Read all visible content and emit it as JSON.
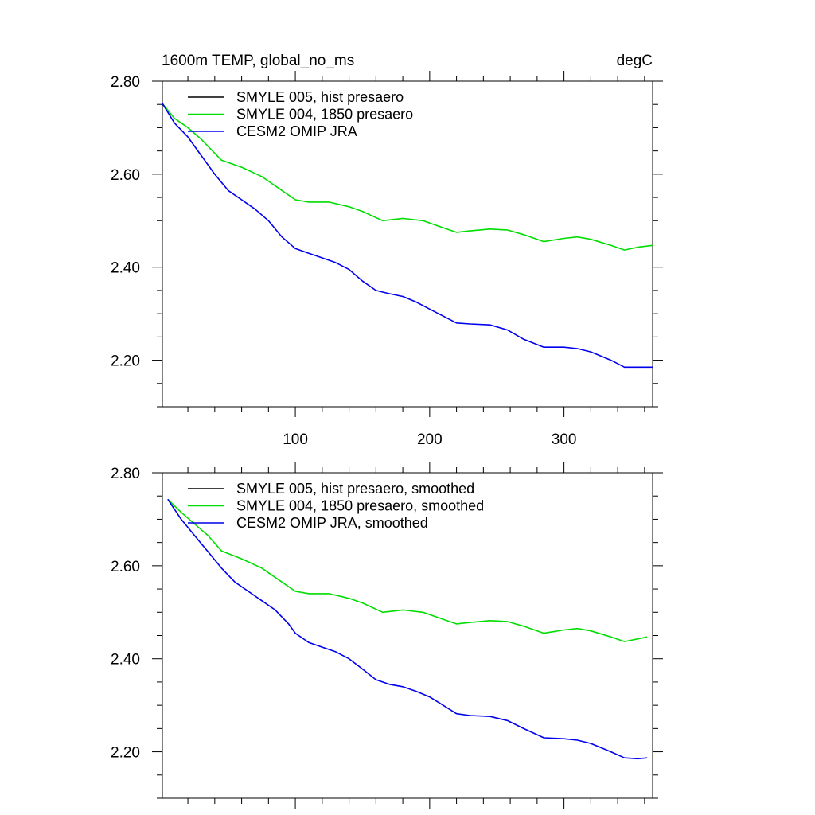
{
  "chart_data": [
    {
      "type": "line",
      "title_left": "1600m TEMP, global_no_ms",
      "title_right": "degC",
      "xlabel": "",
      "ylabel": "",
      "xlim": [
        1,
        366
      ],
      "ylim": [
        2.1,
        2.8
      ],
      "xticks": [
        100,
        200,
        300
      ],
      "xtick_labels": [
        "100",
        "200",
        "300"
      ],
      "yticks": [
        2.2,
        2.4,
        2.6,
        2.8
      ],
      "ytick_labels": [
        "2.20",
        "2.40",
        "2.60",
        "2.80"
      ],
      "grid": false,
      "legend_position": "top-left",
      "series": [
        {
          "name": "SMYLE 005, hist presaero",
          "color": "#000000",
          "x": [],
          "y": []
        },
        {
          "name": "SMYLE 004, 1850 presaero",
          "color": "#00dd00",
          "x": [
            1,
            10,
            20,
            30,
            40,
            45,
            60,
            75,
            80,
            90,
            100,
            110,
            125,
            140,
            150,
            165,
            180,
            195,
            210,
            220,
            230,
            245,
            258,
            270,
            285,
            300,
            310,
            320,
            335,
            345,
            355,
            366
          ],
          "y": [
            2.752,
            2.72,
            2.7,
            2.675,
            2.645,
            2.63,
            2.615,
            2.595,
            2.585,
            2.565,
            2.545,
            2.54,
            2.54,
            2.53,
            2.52,
            2.5,
            2.505,
            2.5,
            2.485,
            2.475,
            2.478,
            2.482,
            2.48,
            2.47,
            2.455,
            2.462,
            2.465,
            2.46,
            2.447,
            2.437,
            2.443,
            2.447
          ]
        },
        {
          "name": "CESM2 OMIP JRA",
          "color": "#0000ee",
          "x": [
            1,
            10,
            20,
            30,
            40,
            50,
            60,
            70,
            80,
            90,
            100,
            110,
            120,
            130,
            140,
            150,
            160,
            170,
            180,
            190,
            200,
            210,
            220,
            230,
            245,
            258,
            270,
            285,
            300,
            310,
            320,
            335,
            345,
            355,
            366
          ],
          "y": [
            2.752,
            2.71,
            2.68,
            2.64,
            2.6,
            2.565,
            2.545,
            2.525,
            2.5,
            2.465,
            2.44,
            2.43,
            2.42,
            2.41,
            2.395,
            2.37,
            2.35,
            2.343,
            2.337,
            2.325,
            2.31,
            2.295,
            2.28,
            2.278,
            2.276,
            2.265,
            2.245,
            2.228,
            2.228,
            2.225,
            2.218,
            2.2,
            2.185,
            2.185,
            2.185
          ]
        }
      ]
    },
    {
      "type": "line",
      "title_left": "",
      "title_right": "",
      "xlabel": "",
      "ylabel": "",
      "xlim": [
        1,
        366
      ],
      "ylim": [
        2.1,
        2.8
      ],
      "xticks": [
        100,
        200,
        300
      ],
      "xtick_labels": [],
      "yticks": [
        2.2,
        2.4,
        2.6,
        2.8
      ],
      "ytick_labels": [
        "2.20",
        "2.40",
        "2.60",
        "2.80"
      ],
      "grid": false,
      "legend_position": "top-left",
      "series": [
        {
          "name": "SMYLE 005, hist presaero, smoothed",
          "color": "#000000",
          "x": [],
          "y": []
        },
        {
          "name": "SMYLE 004, 1850 presaero, smoothed",
          "color": "#00dd00",
          "x": [
            5,
            15,
            25,
            35,
            45,
            60,
            75,
            90,
            100,
            110,
            125,
            140,
            150,
            165,
            180,
            195,
            210,
            220,
            230,
            245,
            258,
            270,
            285,
            300,
            310,
            320,
            335,
            345,
            362
          ],
          "y": [
            2.743,
            2.715,
            2.69,
            2.665,
            2.632,
            2.615,
            2.595,
            2.565,
            2.545,
            2.54,
            2.54,
            2.53,
            2.52,
            2.5,
            2.505,
            2.5,
            2.485,
            2.475,
            2.478,
            2.482,
            2.48,
            2.47,
            2.455,
            2.462,
            2.465,
            2.46,
            2.447,
            2.437,
            2.447
          ]
        },
        {
          "name": "CESM2 OMIP JRA, smoothed",
          "color": "#0000ee",
          "x": [
            5,
            15,
            25,
            35,
            45,
            55,
            65,
            75,
            85,
            95,
            100,
            110,
            120,
            130,
            140,
            150,
            160,
            170,
            180,
            190,
            200,
            210,
            220,
            230,
            245,
            258,
            270,
            285,
            300,
            310,
            320,
            335,
            345,
            355,
            362
          ],
          "y": [
            2.743,
            2.7,
            2.665,
            2.63,
            2.595,
            2.565,
            2.545,
            2.525,
            2.505,
            2.475,
            2.455,
            2.435,
            2.425,
            2.415,
            2.4,
            2.378,
            2.355,
            2.345,
            2.34,
            2.33,
            2.318,
            2.3,
            2.282,
            2.278,
            2.276,
            2.267,
            2.25,
            2.23,
            2.228,
            2.225,
            2.218,
            2.2,
            2.187,
            2.185,
            2.187
          ]
        }
      ]
    }
  ]
}
